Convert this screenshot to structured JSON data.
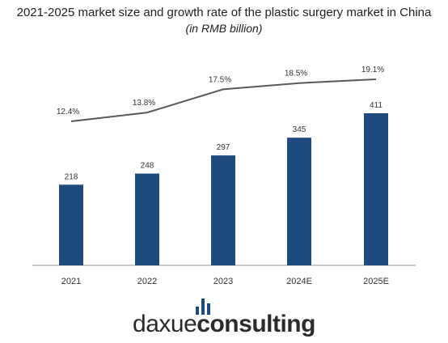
{
  "title": "2021-2025 market size and growth rate of the plastic surgery market in China",
  "subtitle": "(in RMB billion)",
  "logo": {
    "part1": "daxue",
    "part2": "consulting",
    "icon": "bar-chart-icon",
    "icon_color": "#1f4a86"
  },
  "colors": {
    "bar": "#1f4a7e",
    "line": "#5a5a5a",
    "axis": "#999999"
  },
  "chart_data": {
    "type": "bar",
    "categories": [
      "2021",
      "2022",
      "2023",
      "2024E",
      "2025E"
    ],
    "series": [
      {
        "values": [
          218,
          248,
          297,
          345,
          411
        ],
        "labels": [
          "218",
          "248",
          "297",
          "345",
          "411"
        ]
      },
      {
        "type": "line",
        "values": [
          12.4,
          13.8,
          17.5,
          18.5,
          19.1
        ],
        "labels": [
          "12.4%",
          "13.8%",
          "17.5%",
          "18.5%",
          "19.1%"
        ]
      }
    ],
    "title": "2021-2025 market size and growth rate of the plastic surgery market in China",
    "subtitle": "(in RMB billion)",
    "xlabel": "",
    "ylabel": "",
    "grid": false,
    "legend": "none"
  }
}
